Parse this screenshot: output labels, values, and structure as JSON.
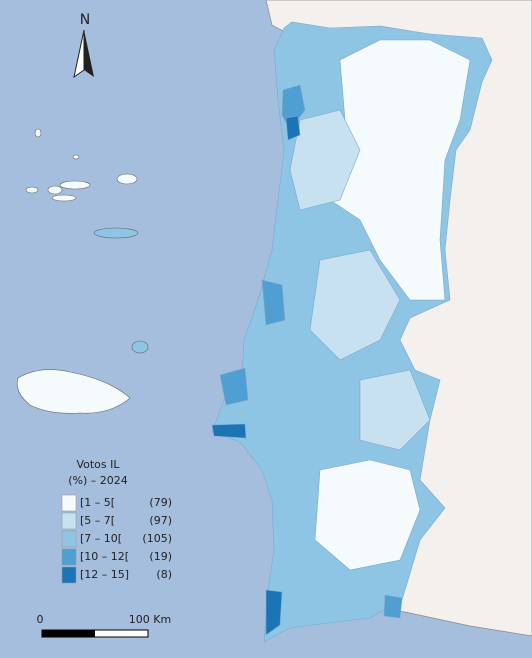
{
  "north": "N",
  "legend": {
    "title": "Votos IL",
    "subtitle": "(%) – 2024",
    "items": [
      {
        "label": "[1 – 5[",
        "count": "(79)",
        "color": "#f5fbfd"
      },
      {
        "label": "[5 – 7[",
        "count": "(97)",
        "color": "#c8e1f1"
      },
      {
        "label": "[7 – 10[",
        "count": "(105)",
        "color": "#8ec4e4"
      },
      {
        "label": "[10 – 12[",
        "count": "(19)",
        "color": "#4f9fd3"
      },
      {
        "label": "[12 – 15]",
        "count": "(8)",
        "color": "#1b74b5"
      }
    ]
  },
  "scale": {
    "start": "0",
    "end": "100 Km"
  }
}
